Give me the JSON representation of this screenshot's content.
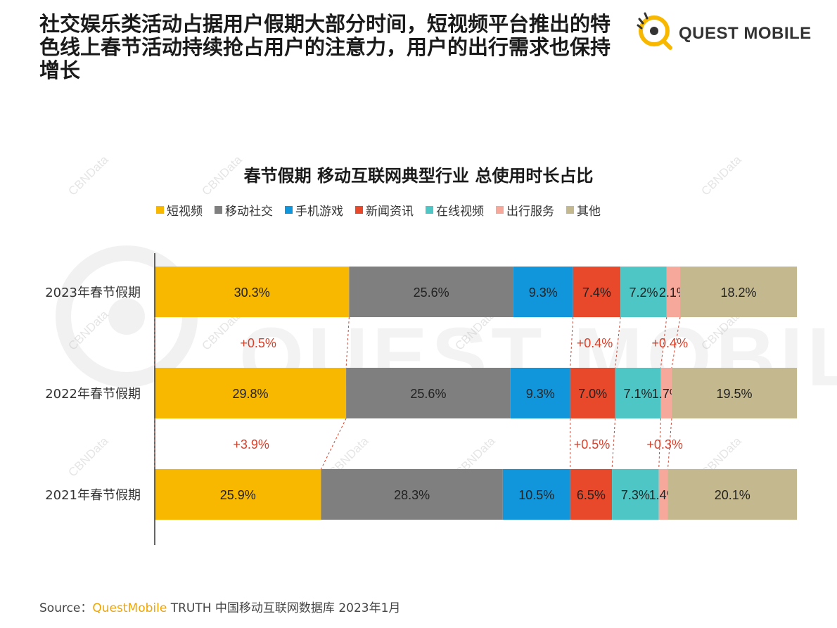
{
  "headline": "社交娱乐类活动占据用户假期大部分时间，短视频平台推出的特色线上春节活动持续抢占用户的注意力，用户的出行需求也保持增长",
  "logo": {
    "text": "QUEST MOBILE",
    "icon": "quest-mobile-logo-icon"
  },
  "watermarks": {
    "text": "CBNData",
    "big_text": "QUEST MOBILE"
  },
  "source": {
    "prefix": "Source：",
    "brand": "QuestMobile",
    "suffix": " TRUTH 中国移动互联网数据库 2023年1月"
  },
  "colors": {
    "短视频": "#f9b800",
    "移动社交": "#7f7f7f",
    "手机游戏": "#1296db",
    "新闻资讯": "#e8492b",
    "在线视频": "#4fc6c6",
    "出行服务": "#f6a89a",
    "其他": "#c4b88f",
    "change_text": "#d9402a"
  },
  "chart_data": {
    "type": "bar",
    "orientation": "horizontal",
    "stacked": true,
    "percent": true,
    "title": "春节假期 移动互联网典型行业 总使用时长占比",
    "legend_position": "top",
    "categories": [
      "2023年春节假期",
      "2022年春节假期",
      "2021年春节假期"
    ],
    "series": [
      {
        "name": "短视频",
        "values": [
          30.3,
          29.8,
          25.9
        ],
        "labels": [
          "30.3%",
          "29.8%",
          "25.9%"
        ]
      },
      {
        "name": "移动社交",
        "values": [
          25.6,
          25.6,
          28.3
        ],
        "labels": [
          "25.6%",
          "25.6%",
          "28.3%"
        ]
      },
      {
        "name": "手机游戏",
        "values": [
          9.3,
          9.3,
          10.5
        ],
        "labels": [
          "9.3%",
          "9.3%",
          "10.5%"
        ]
      },
      {
        "name": "新闻资讯",
        "values": [
          7.4,
          7.0,
          6.5
        ],
        "labels": [
          "7.4%",
          "7.0%",
          "6.5%"
        ]
      },
      {
        "name": "在线视频",
        "values": [
          7.2,
          7.1,
          7.3
        ],
        "labels": [
          "7.2%",
          "7.1%",
          "7.3%"
        ]
      },
      {
        "name": "出行服务",
        "values": [
          2.1,
          1.7,
          1.4
        ],
        "labels": [
          "2.1%",
          "1.7%",
          "1.4%"
        ]
      },
      {
        "name": "其他",
        "values": [
          18.2,
          19.5,
          20.1
        ],
        "labels": [
          "18.2%",
          "19.5%",
          "20.1%"
        ]
      }
    ],
    "changes": [
      {
        "between": [
          "2023年春节假期",
          "2022年春节假期"
        ],
        "series": "短视频",
        "label": "+0.5%"
      },
      {
        "between": [
          "2023年春节假期",
          "2022年春节假期"
        ],
        "series": "新闻资讯",
        "label": "+0.4%"
      },
      {
        "between": [
          "2023年春节假期",
          "2022年春节假期"
        ],
        "series": "出行服务",
        "label": "+0.4%"
      },
      {
        "between": [
          "2022年春节假期",
          "2021年春节假期"
        ],
        "series": "短视频",
        "label": "+3.9%"
      },
      {
        "between": [
          "2022年春节假期",
          "2021年春节假期"
        ],
        "series": "新闻资讯",
        "label": "+0.5%"
      },
      {
        "between": [
          "2022年春节假期",
          "2021年春节假期"
        ],
        "series": "出行服务",
        "label": "+0.3%"
      }
    ]
  }
}
